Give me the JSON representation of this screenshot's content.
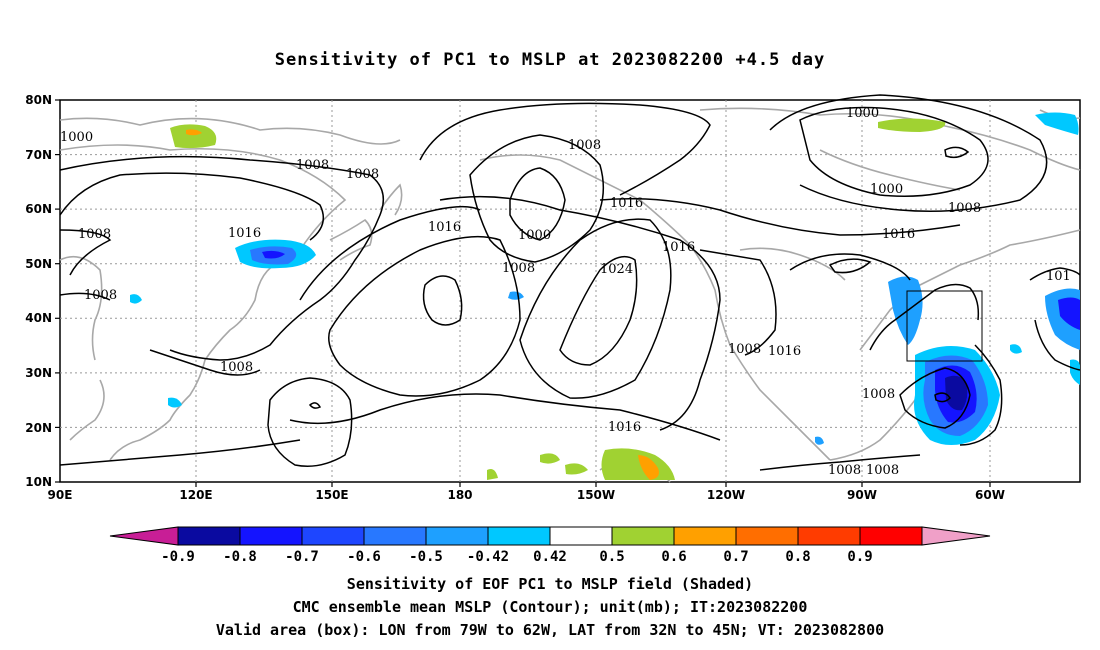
{
  "title": "Sensitivity of PC1 to MSLP at 2023082200 +4.5 day",
  "map": {
    "lat_labels": [
      "80N",
      "70N",
      "60N",
      "50N",
      "40N",
      "30N",
      "20N",
      "10N"
    ],
    "lon_labels": [
      "90E",
      "120E",
      "150E",
      "180",
      "150W",
      "120W",
      "90W",
      "60W"
    ],
    "contour_labels": [
      "1000",
      "1008",
      "1008",
      "1016",
      "1008",
      "1008",
      "1016",
      "1008",
      "1000",
      "1008",
      "1016",
      "1024",
      "1016",
      "1016",
      "1008",
      "1016",
      "1008",
      "1016",
      "1008",
      "1008",
      "1000",
      "1000",
      "1008",
      "1016",
      "101",
      "1008",
      "1016",
      "1008"
    ],
    "box": {
      "lon_from": "79W",
      "lon_to": "62W",
      "lat_from": "32N",
      "lat_to": "45N"
    }
  },
  "colorbar": {
    "labels": [
      "-0.9",
      "-0.8",
      "-0.7",
      "-0.6",
      "-0.5",
      "-0.42",
      "0.42",
      "0.5",
      "0.6",
      "0.7",
      "0.8",
      "0.9"
    ],
    "colors": [
      "#0a0aa0",
      "#1414ff",
      "#1e46ff",
      "#2878ff",
      "#1ea0ff",
      "#00c8ff",
      "#ffffff",
      "#a0d232",
      "#ffa000",
      "#ff6e00",
      "#ff3c00",
      "#ff0000"
    ],
    "low_extend_color": "#c81e96",
    "high_extend_color": "#f0a0c8"
  },
  "caption": {
    "line1": "Sensitivity of EOF PC1 to MSLP field (Shaded)",
    "line2": "CMC ensemble mean MSLP (Contour); unit(mb); IT:2023082200",
    "line3": "Valid area (box): LON from 79W to 62W, LAT from 32N to 45N; VT: 2023082800"
  }
}
